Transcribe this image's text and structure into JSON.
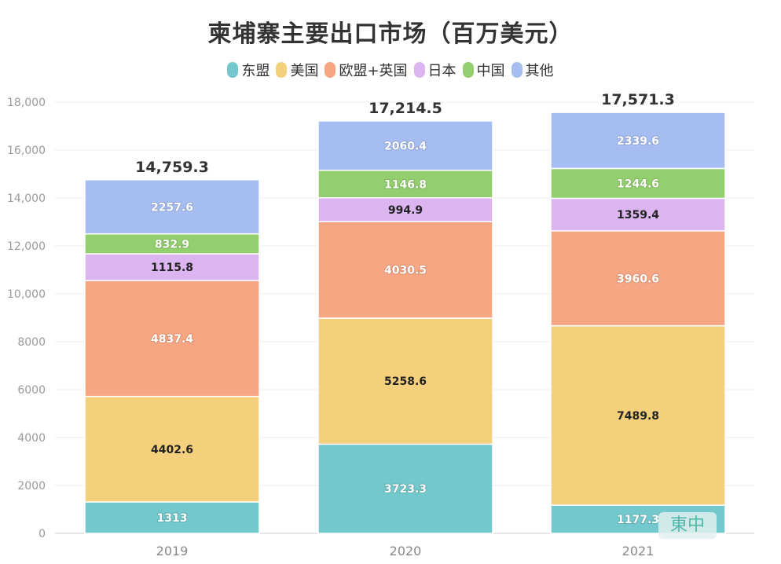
{
  "chart_data": {
    "type": "bar",
    "stacked": true,
    "title": "柬埔寨主要出口市场（百万美元）",
    "categories": [
      "2019",
      "2020",
      "2021"
    ],
    "totals": [
      "14,759.3",
      "17,214.5",
      "17,571.3"
    ],
    "ylim": [
      0,
      18000
    ],
    "yticks": [
      0,
      2000,
      4000,
      6000,
      8000,
      10000,
      12000,
      14000,
      16000,
      18000
    ],
    "ytick_labels": [
      "0",
      "2000",
      "4000",
      "6000",
      "8000",
      "10,000",
      "12,000",
      "14,000",
      "16,000",
      "18,000"
    ],
    "grid": true,
    "legend_position": "top",
    "series": [
      {
        "name": "东盟",
        "color": "#72c8cc",
        "values": [
          1313,
          3723.3,
          1177.3
        ],
        "labels": [
          "1313",
          "3723.3",
          "1177.3"
        ],
        "label_color": "#ffffff"
      },
      {
        "name": "美国",
        "color": "#f5d07c",
        "values": [
          4402.6,
          5258.6,
          7489.8
        ],
        "labels": [
          "4402.6",
          "5258.6",
          "7489.8"
        ],
        "label_color": "#222222"
      },
      {
        "name": "欧盟+英国",
        "color": "#f7a683",
        "values": [
          4837.4,
          4030.5,
          3960.6
        ],
        "labels": [
          "4837.4",
          "4030.5",
          "3960.6"
        ],
        "label_color": "#ffffff"
      },
      {
        "name": "日本",
        "color": "#dcb5f0",
        "values": [
          1115.8,
          994.9,
          1359.4
        ],
        "labels": [
          "1115.8",
          "994.9",
          "1359.4"
        ],
        "label_color": "#222222"
      },
      {
        "name": "中国",
        "color": "#93cf6e",
        "values": [
          832.9,
          1146.8,
          1244.6
        ],
        "labels": [
          "832.9",
          "1146.8",
          "1244.6"
        ],
        "label_color": "#ffffff"
      },
      {
        "name": "其他",
        "color": "#a6bdf2",
        "values": [
          2257.6,
          2060.4,
          2339.6
        ],
        "labels": [
          "2257.6",
          "2060.4",
          "2339.6"
        ],
        "label_color": "#ffffff"
      }
    ]
  },
  "watermark": "東中"
}
